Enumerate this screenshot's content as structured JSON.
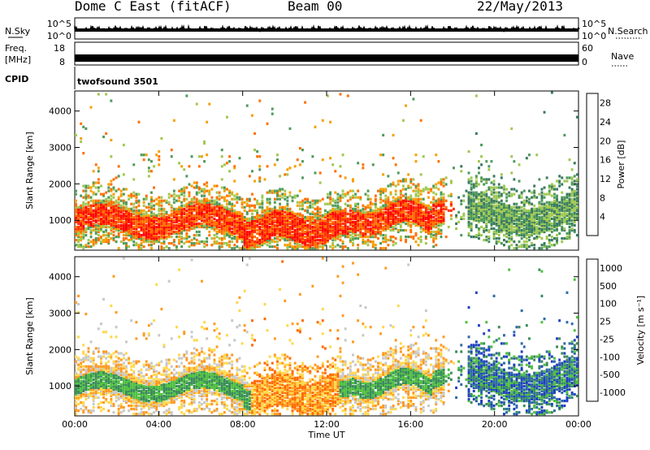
{
  "header": {
    "station": "Dome C East (fitACF)",
    "beam": "Beam 00",
    "date": "22/May/2013"
  },
  "top_panels": {
    "nsky_label": "N.Sky",
    "nsky_ticks": [
      "10^5",
      "10^0"
    ],
    "nsearch_label": "N.Search",
    "freq_label_line1": "Freq.",
    "freq_label_line2": "[MHz]",
    "freq_ticks": [
      "18",
      "8"
    ],
    "nave_label": "Nave",
    "nave_ticks": [
      "60",
      "0"
    ],
    "cpid_label": "CPID",
    "cpid_value": "twofsound 3501"
  },
  "colors": {
    "power_scale": [
      "#1030e0",
      "#2050b0",
      "#3a7a60",
      "#4e9a5a",
      "#a0c850",
      "#f5a000",
      "#ff7000",
      "#ff3000",
      "#ff0000"
    ],
    "velocity_scale": [
      "#2040c0",
      "#2e6aa8",
      "#3a8c5a",
      "#50c040",
      "#c8c8c8",
      "#ffd84a",
      "#ff9a20",
      "#ff6a00",
      "#ff1a00"
    ]
  },
  "chart_data": [
    {
      "type": "heatmap",
      "name": "power",
      "xlabel": "",
      "ylabel": "Slant Range [km]",
      "x_ticks": [
        "00:00",
        "04:00",
        "08:00",
        "12:00",
        "16:00",
        "20:00",
        "00:00"
      ],
      "x_range_hours": [
        0,
        24
      ],
      "y_ticks": [
        1000,
        2000,
        3000,
        4000
      ],
      "ylim": [
        180,
        4550
      ],
      "colorbar": {
        "label": "Power [dB]",
        "ticks": [
          4,
          8,
          12,
          16,
          20,
          24,
          28
        ],
        "range": [
          0,
          30
        ]
      }
    },
    {
      "type": "heatmap",
      "name": "velocity",
      "xlabel": "Time UT",
      "ylabel": "Slant Range [km]",
      "x_ticks": [
        "00:00",
        "04:00",
        "08:00",
        "12:00",
        "16:00",
        "20:00",
        "00:00"
      ],
      "x_range_hours": [
        0,
        24
      ],
      "y_ticks": [
        1000,
        2000,
        3000,
        4000
      ],
      "ylim": [
        180,
        4550
      ],
      "colorbar": {
        "label": "Velocity [m s⁻¹]",
        "ticks": [
          "1000",
          "500",
          "100",
          "25",
          "-25",
          "-100",
          "-500",
          "-1000"
        ]
      }
    }
  ]
}
